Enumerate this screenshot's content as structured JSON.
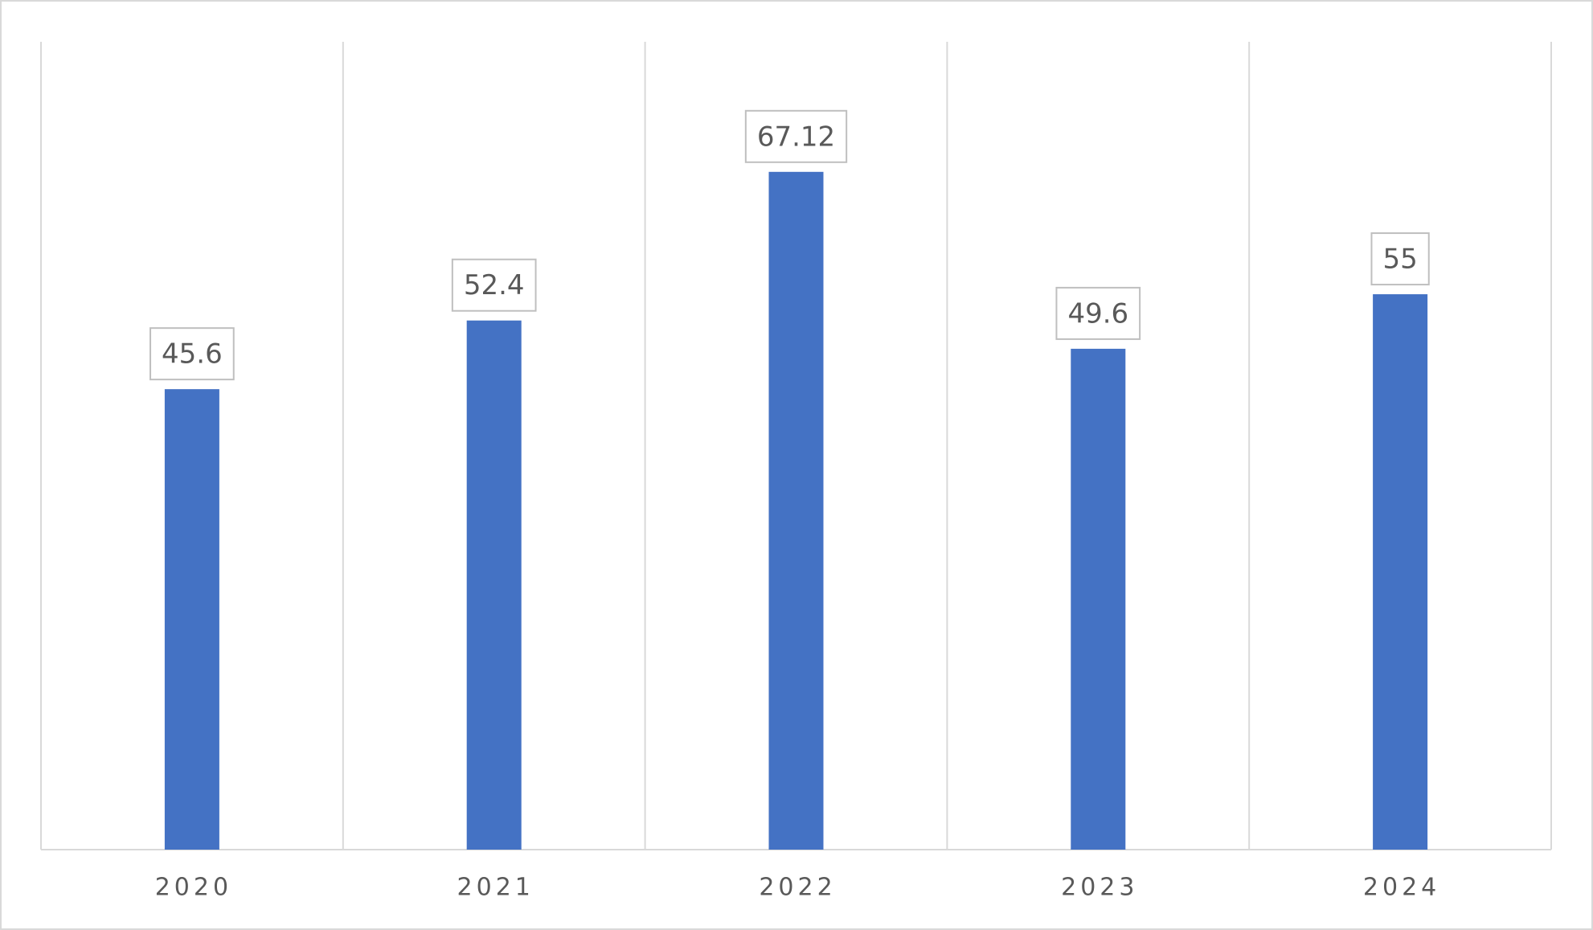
{
  "chart_data": {
    "type": "bar",
    "categories": [
      "2020",
      "2021",
      "2022",
      "2023",
      "2024"
    ],
    "values": [
      45.6,
      52.4,
      67.12,
      49.6,
      55
    ],
    "color": "#4472c4",
    "ylim": [
      0,
      80
    ],
    "grid": true
  }
}
